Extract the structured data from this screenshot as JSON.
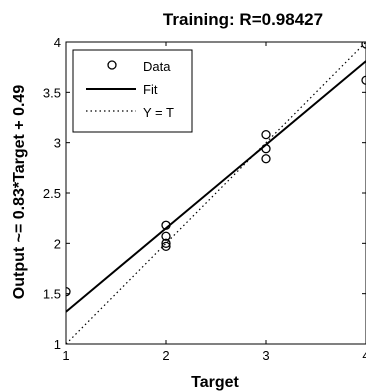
{
  "chart_data": {
    "type": "scatter",
    "title": "Training: R=0.98427",
    "xlabel": "Target",
    "ylabel": "Output ~= 0.83*Target + 0.49",
    "xlim": [
      1,
      4
    ],
    "ylim": [
      1,
      4
    ],
    "xticks": [
      1,
      2,
      3,
      4
    ],
    "yticks": [
      1,
      1.5,
      2,
      2.5,
      3,
      3.5,
      4
    ],
    "xtick_labels": [
      "1",
      "2",
      "3",
      "4"
    ],
    "ytick_labels": [
      "1",
      "1.5",
      "2",
      "2.5",
      "3",
      "3.5",
      "4"
    ],
    "grid": false,
    "legend_position": "top-left",
    "legend": [
      {
        "label": "Data",
        "style": "circle"
      },
      {
        "label": "Fit",
        "style": "solid"
      },
      {
        "label": "Y = T",
        "style": "dotted"
      }
    ],
    "series": [
      {
        "name": "Data",
        "style": "circle",
        "points": [
          {
            "x": 1,
            "y": 1.52
          },
          {
            "x": 2,
            "y": 2.18
          },
          {
            "x": 2,
            "y": 2.07
          },
          {
            "x": 2,
            "y": 2.0
          },
          {
            "x": 2,
            "y": 1.97
          },
          {
            "x": 3,
            "y": 3.08
          },
          {
            "x": 3,
            "y": 2.94
          },
          {
            "x": 3,
            "y": 2.84
          },
          {
            "x": 4,
            "y": 3.98
          },
          {
            "x": 4,
            "y": 3.62
          }
        ]
      },
      {
        "name": "Fit",
        "style": "solid",
        "slope": 0.83,
        "intercept": 0.49
      },
      {
        "name": "Y = T",
        "style": "dotted",
        "slope": 1,
        "intercept": 0
      }
    ],
    "colors": {
      "axes": "#000000",
      "data": "#000000",
      "fit": "#000000",
      "identity": "#000000",
      "background": "#ffffff"
    }
  }
}
